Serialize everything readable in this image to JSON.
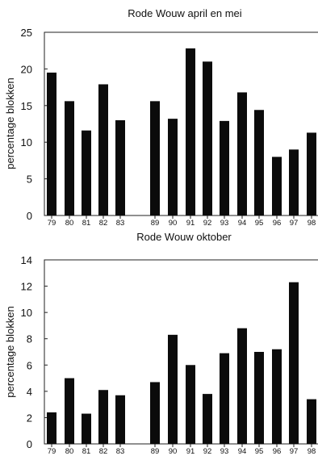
{
  "chart_data": [
    {
      "type": "bar",
      "title": "Rode Wouw april en mei",
      "xlabel": "",
      "ylabel": "percentage blokken",
      "ylim": [
        0,
        25
      ],
      "yticks": [
        0,
        5,
        10,
        15,
        20,
        25
      ],
      "categories": [
        "79",
        "80",
        "81",
        "82",
        "83",
        "89",
        "90",
        "91",
        "92",
        "93",
        "94",
        "95",
        "96",
        "97",
        "98"
      ],
      "values": [
        19.5,
        15.6,
        11.6,
        17.9,
        13.0,
        15.6,
        13.2,
        22.8,
        21.0,
        12.9,
        16.8,
        14.4,
        8.0,
        9.0,
        11.3
      ],
      "bar_color": "#0b0b0b",
      "grid": false
    },
    {
      "type": "bar",
      "title": "Rode Wouw oktober",
      "xlabel": "",
      "ylabel": "percentage blokken",
      "ylim": [
        0,
        14
      ],
      "yticks": [
        0,
        2,
        4,
        6,
        8,
        10,
        12,
        14
      ],
      "categories": [
        "79",
        "80",
        "81",
        "82",
        "83",
        "89",
        "90",
        "91",
        "92",
        "93",
        "94",
        "95",
        "96",
        "97",
        "98"
      ],
      "values": [
        2.4,
        5.0,
        2.3,
        4.1,
        3.7,
        4.7,
        8.3,
        6.0,
        3.8,
        6.9,
        8.8,
        7.0,
        7.2,
        12.3,
        3.4
      ],
      "bar_color": "#0b0b0b",
      "grid": false
    }
  ]
}
